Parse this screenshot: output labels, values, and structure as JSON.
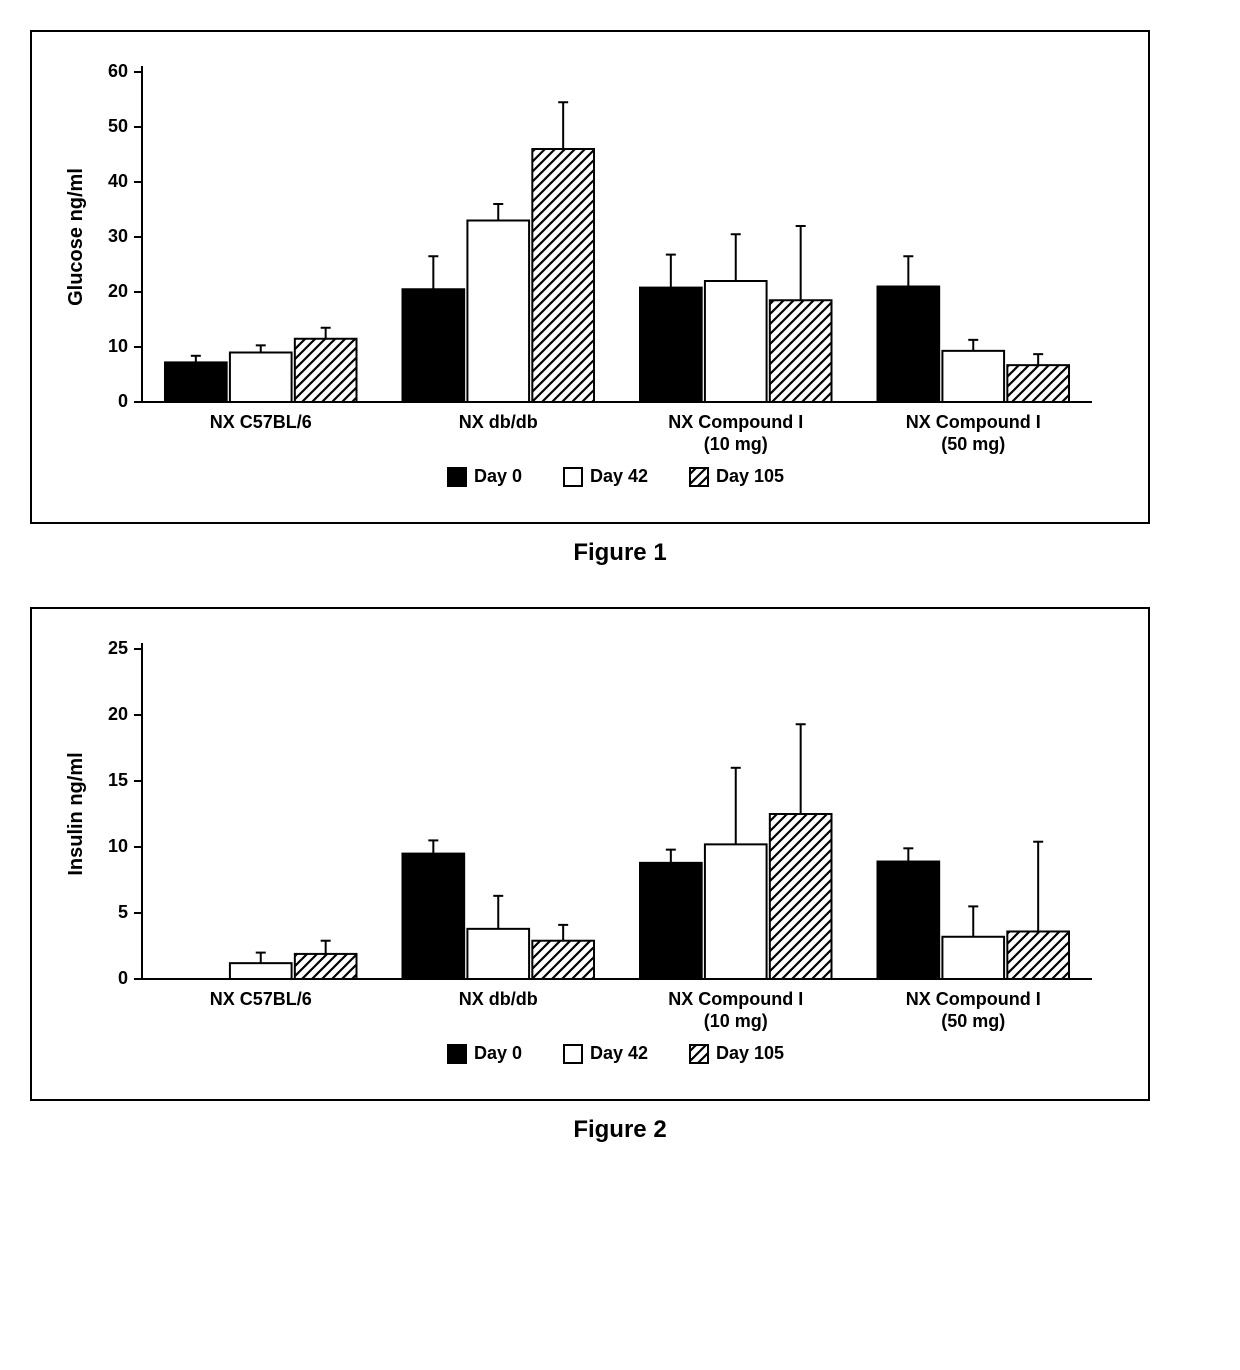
{
  "figure1": {
    "type": "bar",
    "caption": "Figure 1",
    "ylabel": "Glucose ng/ml",
    "ylim": [
      0,
      60
    ],
    "ytick_step": 10,
    "yticks": [
      0,
      10,
      20,
      30,
      40,
      50,
      60
    ],
    "categories": [
      "NX C57BL/6",
      "NX db/db",
      "NX Compound I\n(10 mg)",
      "NX Compound I\n(50 mg)"
    ],
    "series": [
      {
        "name": "Day 0",
        "fill": "solid-black",
        "values": [
          7.2,
          20.5,
          20.8,
          21.0
        ],
        "errors": [
          1.2,
          6.0,
          6.0,
          5.5
        ]
      },
      {
        "name": "Day 42",
        "fill": "white",
        "values": [
          9.0,
          33.0,
          22.0,
          9.3
        ],
        "errors": [
          1.3,
          3.0,
          8.5,
          2.0
        ]
      },
      {
        "name": "Day 105",
        "fill": "hatch",
        "values": [
          11.5,
          46.0,
          18.5,
          6.7
        ],
        "errors": [
          2.0,
          8.5,
          13.5,
          2.0
        ]
      }
    ],
    "legend": [
      "Day 0",
      "Day 42",
      "Day 105"
    ],
    "colors": {
      "solid": "#000000",
      "white": "#ffffff",
      "stroke": "#000000",
      "background": "#ffffff"
    },
    "bar_stroke_width": 2,
    "error_cap_width": 10,
    "label_fontsize": 18,
    "label_fontweight": "bold",
    "group_gap": 0.9,
    "bar_width_rel": 0.27
  },
  "figure2": {
    "type": "bar",
    "caption": "Figure 2",
    "ylabel": "Insulin ng/ml",
    "ylim": [
      0,
      25
    ],
    "ytick_step": 5,
    "yticks": [
      0,
      5,
      10,
      15,
      20,
      25
    ],
    "categories": [
      "NX C57BL/6",
      "NX db/db",
      "NX Compound I\n(10 mg)",
      "NX Compound I\n(50 mg)"
    ],
    "series": [
      {
        "name": "Day 0",
        "fill": "solid-black",
        "values": [
          0,
          9.5,
          8.8,
          8.9
        ],
        "errors": [
          0,
          1.0,
          1.0,
          1.0
        ]
      },
      {
        "name": "Day 42",
        "fill": "white",
        "values": [
          1.2,
          3.8,
          10.2,
          3.2
        ],
        "errors": [
          0.8,
          2.5,
          5.8,
          2.3
        ]
      },
      {
        "name": "Day 105",
        "fill": "hatch",
        "values": [
          1.9,
          2.9,
          12.5,
          3.6
        ],
        "errors": [
          1.0,
          1.2,
          6.8,
          6.8
        ]
      }
    ],
    "legend": [
      "Day 0",
      "Day 42",
      "Day 105"
    ],
    "colors": {
      "solid": "#000000",
      "white": "#ffffff",
      "stroke": "#000000",
      "background": "#ffffff"
    },
    "bar_stroke_width": 2,
    "error_cap_width": 10,
    "label_fontsize": 18,
    "label_fontweight": "bold",
    "group_gap": 0.9,
    "bar_width_rel": 0.27
  }
}
